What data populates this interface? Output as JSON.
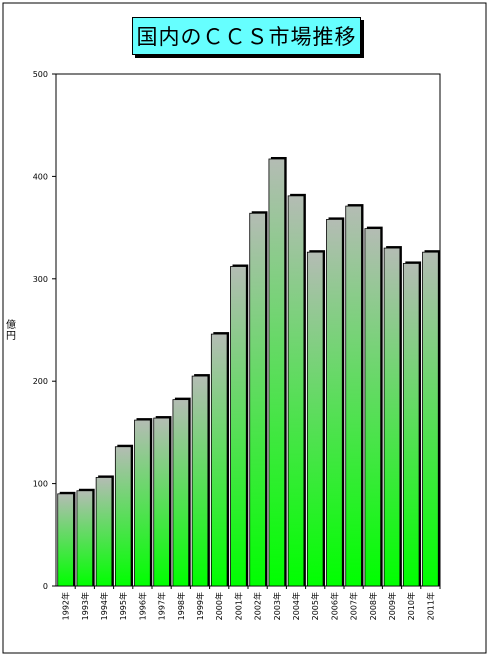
{
  "chart_data": {
    "type": "bar",
    "title": "国内のＣＣＳ市場推移",
    "ylabel": "億円",
    "xlabel": "",
    "ylim": [
      0,
      500
    ],
    "yticks": [
      0,
      100,
      200,
      300,
      400,
      500
    ],
    "grid": false,
    "categories": [
      "1992年",
      "1993年",
      "1994年",
      "1995年",
      "1996年",
      "1997年",
      "1998年",
      "1999年",
      "2000年",
      "2001年",
      "2002年",
      "2003年",
      "2004年",
      "2005年",
      "2006年",
      "2007年",
      "2008年",
      "2009年",
      "2010年",
      "2011年"
    ],
    "values": [
      90,
      93,
      106,
      136,
      162,
      164,
      182,
      205,
      246,
      312,
      364,
      417,
      381,
      326,
      358,
      371,
      349,
      330,
      315,
      326
    ],
    "colors": {
      "bar_top": "#b4bcb4",
      "bar_bottom": "#00ff00",
      "title_bg": "#66ffff"
    }
  }
}
